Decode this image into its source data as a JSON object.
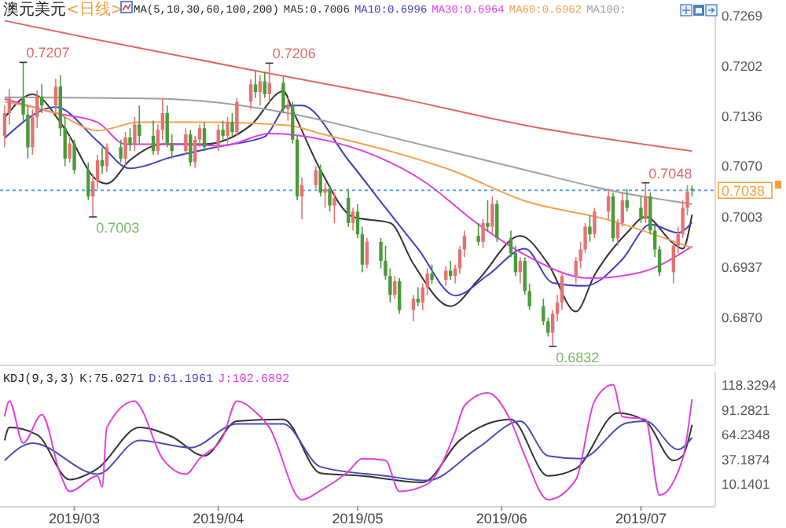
{
  "chart_data": [
    {
      "type": "candlestick",
      "title": "澳元美元",
      "subtitle": "<日线>",
      "legend_title": "MA(5,10,30,60,100,200)",
      "legend": "top",
      "tick_labels": "y",
      "xlim": [
        "2019-02-13",
        "2019-07-17"
      ],
      "ylim": [
        0.6808,
        0.7279
      ],
      "yticks": [
        {
          "value": 0.687,
          "label": "0.6870"
        },
        0.6937,
        0.7003,
        {
          "value": 0.707,
          "label": "0.7070"
        },
        0.7136,
        0.7202,
        0.7269
      ],
      "ref_lines": [
        {
          "axis": "y",
          "value": 0.7038,
          "label": "0.7038",
          "color": "#5aa0e6",
          "line_style": "dotted"
        }
      ],
      "annotations": [
        {
          "text": "0.7207",
          "x": "2019-02-18",
          "y": 0.7207
        },
        {
          "text": "0.7003",
          "x": "2019-03-05",
          "y": 0.7003
        },
        {
          "text": "0.7206",
          "x": "2019-04-12",
          "y": 0.7206
        },
        {
          "text": "0.6832",
          "x": "2019-06-12",
          "y": 0.6832
        },
        {
          "text": "0.7048",
          "x": "2019-07-02",
          "y": 0.7048
        }
      ],
      "series": [
        {
          "type": "line",
          "name": "MA5:0.7006",
          "color": "#333333",
          "x": [
            "2019-02-14",
            "2019-02-20",
            "2019-02-27",
            "2019-03-06",
            "2019-03-08",
            "2019-03-13",
            "2019-03-20",
            "2019-03-29",
            "2019-04-08",
            "2019-04-15",
            "2019-04-17",
            "2019-04-23",
            "2019-04-30",
            "2019-05-08",
            "2019-05-13",
            "2019-05-21",
            "2019-05-27",
            "2019-06-05",
            "2019-06-11",
            "2019-06-17",
            "2019-06-21",
            "2019-06-28",
            "2019-07-02",
            "2019-07-08",
            "2019-07-10",
            "2019-07-12"
          ],
          "values": [
            0.7134,
            0.7165,
            0.7119,
            0.7051,
            0.7047,
            0.7078,
            0.7099,
            0.7099,
            0.7124,
            0.7169,
            0.7144,
            0.7065,
            0.7003,
            0.6995,
            0.6941,
            0.6885,
            0.692,
            0.6978,
            0.6941,
            0.6878,
            0.6926,
            0.6982,
            0.7003,
            0.6968,
            0.6961,
            0.7006
          ]
        },
        {
          "type": "line",
          "name": "MA10:0.6996",
          "color": "#4040c0",
          "x": [
            "2019-02-14",
            "2019-02-25",
            "2019-03-06",
            "2019-03-13",
            "2019-03-22",
            "2019-04-02",
            "2019-04-11",
            "2019-04-16",
            "2019-04-19",
            "2019-04-29",
            "2019-05-07",
            "2019-05-14",
            "2019-05-22",
            "2019-05-29",
            "2019-06-06",
            "2019-06-12",
            "2019-06-19",
            "2019-06-27",
            "2019-07-03",
            "2019-07-09",
            "2019-07-12"
          ],
          "values": [
            0.7107,
            0.7148,
            0.7103,
            0.7067,
            0.7082,
            0.7097,
            0.7109,
            0.715,
            0.715,
            0.7078,
            0.7015,
            0.6961,
            0.6899,
            0.6926,
            0.6961,
            0.6916,
            0.6912,
            0.6947,
            0.6993,
            0.6982,
            0.6996
          ]
        },
        {
          "type": "line",
          "name": "MA30:0.6964",
          "color": "#e040e0",
          "x": [
            "2019-02-14",
            "2019-02-25",
            "2019-03-06",
            "2019-03-12",
            "2019-03-22",
            "2019-04-02",
            "2019-04-12",
            "2019-04-25",
            "2019-05-09",
            "2019-05-15",
            "2019-05-27",
            "2019-06-06",
            "2019-06-20",
            "2019-07-01",
            "2019-07-12"
          ],
          "values": [
            0.7159,
            0.714,
            0.7128,
            0.7099,
            0.7099,
            0.7097,
            0.7113,
            0.7103,
            0.7072,
            0.7051,
            0.6993,
            0.6953,
            0.6922,
            0.693,
            0.6964
          ]
        },
        {
          "type": "line",
          "name": "MA60:0.6962",
          "color": "#f5a050",
          "x": [
            "2019-02-14",
            "2019-02-25",
            "2019-03-06",
            "2019-03-15",
            "2019-03-29",
            "2019-04-16",
            "2019-04-23",
            "2019-05-09",
            "2019-05-21",
            "2019-06-06",
            "2019-06-24",
            "2019-07-12"
          ],
          "values": [
            0.7155,
            0.714,
            0.7117,
            0.7128,
            0.7128,
            0.7124,
            0.7113,
            0.7088,
            0.7065,
            0.7024,
            0.6999,
            0.6962
          ]
        },
        {
          "type": "line",
          "name": "MA100:",
          "color": "#a0a0a0",
          "x": [
            "2019-02-14",
            "2019-03-20",
            "2019-04-16",
            "2019-05-09",
            "2019-06-06",
            "2019-06-26",
            "2019-07-12"
          ],
          "values": [
            0.7161,
            0.7159,
            0.714,
            0.7107,
            0.7065,
            0.7036,
            0.702
          ]
        },
        {
          "type": "line",
          "color": "#e06666",
          "x": [
            "2019-02-14",
            "2019-03-05",
            "2019-04-09",
            "2019-05-09",
            "2019-06-06",
            "2019-07-12"
          ],
          "values": [
            0.7262,
            0.7238,
            0.7196,
            0.7161,
            0.7124,
            0.709
          ]
        },
        {
          "color": "#e57373",
          "x": [
            "2019-02-14",
            "2019-02-15",
            "2019-02-20",
            "2019-02-21",
            "2019-02-25",
            "2019-02-28",
            "2019-03-05",
            "2019-03-06",
            "2019-03-08",
            "2019-03-12",
            "2019-03-14",
            "2019-03-19",
            "2019-03-20",
            "2019-03-25",
            "2019-03-27",
            "2019-03-28",
            "2019-04-01",
            "2019-04-03",
            "2019-04-05",
            "2019-04-08",
            "2019-04-10",
            "2019-04-12",
            "2019-04-16",
            "2019-04-19",
            "2019-04-22",
            "2019-04-24",
            "2019-04-26",
            "2019-04-30",
            "2019-05-03",
            "2019-05-09",
            "2019-05-13",
            "2019-05-15",
            "2019-05-16",
            "2019-05-20",
            "2019-05-22",
            "2019-05-23",
            "2019-05-24",
            "2019-05-28",
            "2019-05-30",
            "2019-06-05",
            "2019-06-12",
            "2019-06-13",
            "2019-06-14",
            "2019-06-17",
            "2019-06-18",
            "2019-06-19",
            "2019-06-21",
            "2019-06-24",
            "2019-06-26",
            "2019-06-27",
            "2019-07-02",
            "2019-07-08",
            "2019-07-09",
            "2019-07-10",
            "2019-07-11"
          ],
          "ohlc": [
            [
              0.711,
              0.715,
              0.7095,
              0.714
            ],
            [
              0.714,
              0.7172,
              0.7125,
              0.716
            ],
            [
              0.7095,
              0.7145,
              0.7085,
              0.7135
            ],
            [
              0.7135,
              0.717,
              0.712,
              0.7162
            ],
            [
              0.715,
              0.7185,
              0.714,
              0.7175
            ],
            [
              0.708,
              0.711,
              0.7075,
              0.71
            ],
            [
              0.703,
              0.706,
              0.7003,
              0.705
            ],
            [
              0.705,
              0.7085,
              0.704,
              0.7078
            ],
            [
              0.707,
              0.71,
              0.7062,
              0.7095
            ],
            [
              0.708,
              0.7115,
              0.707,
              0.7108
            ],
            [
              0.7098,
              0.7135,
              0.709,
              0.7125
            ],
            [
              0.709,
              0.7125,
              0.7085,
              0.7118
            ],
            [
              0.7118,
              0.716,
              0.7105,
              0.714
            ],
            [
              0.709,
              0.712,
              0.7085,
              0.7112
            ],
            [
              0.7075,
              0.711,
              0.7068,
              0.7105
            ],
            [
              0.7105,
              0.7125,
              0.7095,
              0.712
            ],
            [
              0.7095,
              0.7125,
              0.709,
              0.7118
            ],
            [
              0.711,
              0.7135,
              0.71,
              0.7128
            ],
            [
              0.7115,
              0.716,
              0.711,
              0.7155
            ],
            [
              0.7155,
              0.7185,
              0.7145,
              0.7178
            ],
            [
              0.7168,
              0.719,
              0.715,
              0.7182
            ],
            [
              0.7165,
              0.7206,
              0.7155,
              0.718
            ],
            [
              0.7145,
              0.716,
              0.713,
              0.715
            ],
            [
              0.703,
              0.7055,
              0.7,
              0.7045
            ],
            [
              0.7045,
              0.707,
              0.704,
              0.7065
            ],
            [
              0.7035,
              0.7048,
              0.7015,
              0.704
            ],
            [
              0.7018,
              0.7035,
              0.6995,
              0.7028
            ],
            [
              0.6995,
              0.7015,
              0.6985,
              0.701
            ],
            [
              0.694,
              0.6975,
              0.6935,
              0.697
            ],
            [
              0.69,
              0.6925,
              0.6895,
              0.6918
            ],
            [
              0.688,
              0.69,
              0.6865,
              0.6895
            ],
            [
              0.689,
              0.6915,
              0.688,
              0.691
            ],
            [
              0.691,
              0.6935,
              0.69,
              0.6928
            ],
            [
              0.692,
              0.6938,
              0.6912,
              0.6932
            ],
            [
              0.6925,
              0.694,
              0.6915,
              0.6935
            ],
            [
              0.6935,
              0.6965,
              0.6928,
              0.696
            ],
            [
              0.696,
              0.6985,
              0.695,
              0.6978
            ],
            [
              0.697,
              0.7,
              0.6962,
              0.6995
            ],
            [
              0.699,
              0.703,
              0.698,
              0.702
            ],
            [
              0.693,
              0.695,
              0.6915,
              0.6945
            ],
            [
              0.685,
              0.688,
              0.6832,
              0.6875
            ],
            [
              0.6875,
              0.69,
              0.6865,
              0.689
            ],
            [
              0.689,
              0.693,
              0.688,
              0.6925
            ],
            [
              0.6925,
              0.695,
              0.6915,
              0.6945
            ],
            [
              0.6945,
              0.697,
              0.6935,
              0.696
            ],
            [
              0.696,
              0.6995,
              0.6955,
              0.699
            ],
            [
              0.698,
              0.7015,
              0.6975,
              0.701
            ],
            [
              0.701,
              0.704,
              0.7,
              0.703
            ],
            [
              0.6975,
              0.7,
              0.6965,
              0.6995
            ],
            [
              0.6995,
              0.7035,
              0.699,
              0.7025
            ],
            [
              0.7,
              0.7048,
              0.6995,
              0.703
            ],
            [
              0.693,
              0.697,
              0.6915,
              0.6965
            ],
            [
              0.6965,
              0.699,
              0.6955,
              0.698
            ],
            [
              0.698,
              0.7025,
              0.6975,
              0.7015
            ],
            [
              0.7015,
              0.7045,
              0.7005,
              0.7036
            ]
          ]
        },
        {
          "color": "#4a9a3a",
          "x": [
            "2019-02-18",
            "2019-02-19",
            "2019-02-22",
            "2019-02-26",
            "2019-02-27",
            "2019-03-01",
            "2019-03-04",
            "2019-03-07",
            "2019-03-11",
            "2019-03-13",
            "2019-03-15",
            "2019-03-18",
            "2019-03-21",
            "2019-03-22",
            "2019-03-26",
            "2019-03-29",
            "2019-04-02",
            "2019-04-04",
            "2019-04-09",
            "2019-04-11",
            "2019-04-15",
            "2019-04-17",
            "2019-04-18",
            "2019-04-23",
            "2019-04-25",
            "2019-04-29",
            "2019-05-01",
            "2019-05-02",
            "2019-05-06",
            "2019-05-07",
            "2019-05-08",
            "2019-05-10",
            "2019-05-14",
            "2019-05-17",
            "2019-05-21",
            "2019-05-27",
            "2019-05-29",
            "2019-05-31",
            "2019-06-03",
            "2019-06-04",
            "2019-06-06",
            "2019-06-07",
            "2019-06-10",
            "2019-06-11",
            "2019-06-20",
            "2019-06-25",
            "2019-06-28",
            "2019-07-01",
            "2019-07-03",
            "2019-07-04",
            "2019-07-05",
            "2019-07-12"
          ],
          "ohlc": [
            [
              0.716,
              0.7207,
              0.713,
              0.7138
            ],
            [
              0.7138,
              0.715,
              0.708,
              0.7095
            ],
            [
              0.7162,
              0.7178,
              0.714,
              0.715
            ],
            [
              0.7175,
              0.719,
              0.711,
              0.712
            ],
            [
              0.712,
              0.7135,
              0.707,
              0.708
            ],
            [
              0.71,
              0.7105,
              0.706,
              0.7065
            ],
            [
              0.7065,
              0.7075,
              0.7025,
              0.703
            ],
            [
              0.7078,
              0.7095,
              0.706,
              0.707
            ],
            [
              0.7095,
              0.7105,
              0.7075,
              0.708
            ],
            [
              0.7108,
              0.712,
              0.709,
              0.7098
            ],
            [
              0.7125,
              0.715,
              0.71,
              0.711
            ],
            [
              0.711,
              0.713,
              0.7085,
              0.709
            ],
            [
              0.714,
              0.715,
              0.7095,
              0.71
            ],
            [
              0.71,
              0.7112,
              0.708,
              0.709
            ],
            [
              0.7112,
              0.7118,
              0.707,
              0.7075
            ],
            [
              0.712,
              0.7128,
              0.709,
              0.7095
            ],
            [
              0.7118,
              0.713,
              0.7105,
              0.711
            ],
            [
              0.7128,
              0.714,
              0.711,
              0.7115
            ],
            [
              0.7178,
              0.7195,
              0.716,
              0.7168
            ],
            [
              0.7182,
              0.7195,
              0.716,
              0.7165
            ],
            [
              0.718,
              0.7188,
              0.714,
              0.7145
            ],
            [
              0.715,
              0.7155,
              0.71,
              0.7105
            ],
            [
              0.7105,
              0.711,
              0.7025,
              0.703
            ],
            [
              0.7065,
              0.7072,
              0.703,
              0.7035
            ],
            [
              0.704,
              0.7045,
              0.701,
              0.7018
            ],
            [
              0.7028,
              0.704,
              0.699,
              0.6995
            ],
            [
              0.701,
              0.702,
              0.6975,
              0.698
            ],
            [
              0.698,
              0.699,
              0.693,
              0.694
            ],
            [
              0.697,
              0.6975,
              0.6935,
              0.6945
            ],
            [
              0.6945,
              0.6965,
              0.692,
              0.6925
            ],
            [
              0.6925,
              0.6935,
              0.689,
              0.69
            ],
            [
              0.6918,
              0.6922,
              0.6875,
              0.688
            ],
            [
              0.6895,
              0.691,
              0.6885,
              0.689
            ],
            [
              0.6928,
              0.694,
              0.6915,
              0.692
            ],
            [
              0.6932,
              0.6945,
              0.692,
              0.6925
            ],
            [
              0.6978,
              0.6995,
              0.6965,
              0.697
            ],
            [
              0.6995,
              0.7025,
              0.6985,
              0.699
            ],
            [
              0.702,
              0.7025,
              0.697,
              0.6975
            ],
            [
              0.6975,
              0.6985,
              0.695,
              0.6955
            ],
            [
              0.6955,
              0.6965,
              0.6925,
              0.693
            ],
            [
              0.6945,
              0.695,
              0.69,
              0.6905
            ],
            [
              0.6905,
              0.6915,
              0.688,
              0.6885
            ],
            [
              0.6885,
              0.6895,
              0.686,
              0.6865
            ],
            [
              0.6865,
              0.687,
              0.6845,
              0.685
            ],
            [
              0.699,
              0.7005,
              0.697,
              0.698
            ],
            [
              0.703,
              0.7035,
              0.697,
              0.6975
            ],
            [
              0.7025,
              0.704,
              0.701,
              0.7015
            ],
            [
              0.7015,
              0.703,
              0.6995,
              0.7
            ],
            [
              0.703,
              0.7035,
              0.698,
              0.6985
            ],
            [
              0.6985,
              0.6995,
              0.695,
              0.696
            ],
            [
              0.696,
              0.6965,
              0.6925,
              0.693
            ],
            [
              0.704,
              0.7045,
              0.703,
              0.7038
            ]
          ]
        }
      ]
    },
    {
      "type": "line",
      "legend_title": "KDJ(9,3,3)",
      "legend": "top left",
      "xlim": [
        "2019-02-13",
        "2019-07-17"
      ],
      "ylim": [
        -13.9,
        132.3
      ],
      "yticks": [
        10.1401,
        37.1874,
        64.2348,
        91.2821,
        118.3294
      ],
      "xticks": [
        {
          "value": "2019-03-01",
          "label": "2019/03"
        },
        {
          "value": "2019-04-01",
          "label": "2019/04"
        },
        {
          "value": "2019-05-01",
          "label": "2019/05"
        },
        {
          "value": "2019-06-01",
          "label": "2019/06"
        },
        {
          "value": "2019-07-01",
          "label": "2019/07"
        }
      ],
      "series": [
        {
          "name": "K:75.0271",
          "color": "#333333",
          "x": [
            "2019-02-14",
            "2019-02-15",
            "2019-02-21",
            "2019-02-28",
            "2019-03-06",
            "2019-03-15",
            "2019-03-22",
            "2019-03-29",
            "2019-04-05",
            "2019-04-15",
            "2019-04-23",
            "2019-05-02",
            "2019-05-15",
            "2019-05-23",
            "2019-06-03",
            "2019-06-11",
            "2019-06-17",
            "2019-06-26",
            "2019-07-02",
            "2019-07-08",
            "2019-07-10",
            "2019-07-12"
          ],
          "values": [
            58,
            72,
            64,
            15,
            27,
            72,
            62,
            41,
            79,
            81,
            22,
            19,
            12,
            58,
            81,
            19,
            27,
            88,
            79,
            36,
            41,
            75
          ]
        },
        {
          "name": "D:61.1961",
          "color": "#4b4bb5",
          "x": [
            "2019-02-14",
            "2019-02-20",
            "2019-03-06",
            "2019-03-15",
            "2019-03-26",
            "2019-04-05",
            "2019-04-15",
            "2019-04-23",
            "2019-05-07",
            "2019-05-16",
            "2019-05-27",
            "2019-06-05",
            "2019-06-11",
            "2019-06-18",
            "2019-06-28",
            "2019-07-02",
            "2019-07-09",
            "2019-07-12"
          ],
          "values": [
            36,
            55,
            21,
            58,
            50,
            76,
            76,
            29,
            19,
            14,
            50,
            79,
            41,
            38,
            77,
            79,
            48,
            61
          ]
        },
        {
          "name": "J:102.6892",
          "color": "#e040e0",
          "x": [
            "2019-02-14",
            "2019-02-15",
            "2019-02-18",
            "2019-02-22",
            "2019-02-26",
            "2019-02-28",
            "2019-03-06",
            "2019-03-07",
            "2019-03-08",
            "2019-03-14",
            "2019-03-15",
            "2019-03-20",
            "2019-03-25",
            "2019-03-28",
            "2019-04-02",
            "2019-04-05",
            "2019-04-09",
            "2019-04-12",
            "2019-04-19",
            "2019-04-23",
            "2019-04-29",
            "2019-05-02",
            "2019-05-07",
            "2019-05-10",
            "2019-05-16",
            "2019-05-22",
            "2019-05-24",
            "2019-05-29",
            "2019-06-03",
            "2019-06-06",
            "2019-06-11",
            "2019-06-17",
            "2019-06-21",
            "2019-06-25",
            "2019-06-27",
            "2019-07-02",
            "2019-07-05",
            "2019-07-10",
            "2019-07-12"
          ],
          "values": [
            84,
            101,
            55,
            86,
            21,
            2,
            19,
            7,
            72,
            101,
            96,
            38,
            21,
            38,
            62,
            101,
            89,
            72,
            -7,
            3,
            24,
            38,
            36,
            2,
            10,
            67,
            96,
            110,
            79,
            41,
            -7,
            15,
            101,
            119,
            84,
            81,
            -2,
            38,
            103
          ]
        }
      ]
    }
  ]
}
